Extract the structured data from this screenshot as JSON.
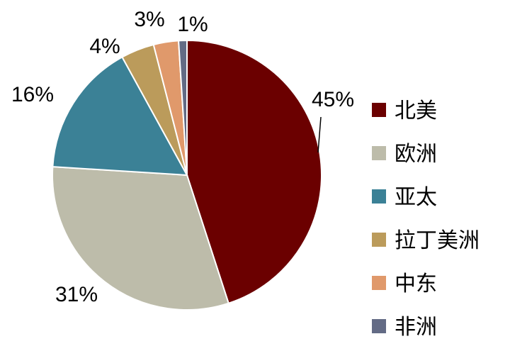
{
  "chart_data": {
    "type": "pie",
    "title": "",
    "legend_position": "right",
    "slices": [
      {
        "name": "北美",
        "value": 45,
        "label": "45%",
        "color": "#6b0000"
      },
      {
        "name": "欧洲",
        "value": 31,
        "label": "31%",
        "color": "#bdbcaa"
      },
      {
        "name": "亚太",
        "value": 16,
        "label": "16%",
        "color": "#3b8196"
      },
      {
        "name": "拉丁美洲",
        "value": 4,
        "label": "4%",
        "color": "#bb9b5b"
      },
      {
        "name": "中东",
        "value": 3,
        "label": "3%",
        "color": "#e0996b"
      },
      {
        "name": "非洲",
        "value": 1,
        "label": "1%",
        "color": "#636b85"
      }
    ]
  }
}
